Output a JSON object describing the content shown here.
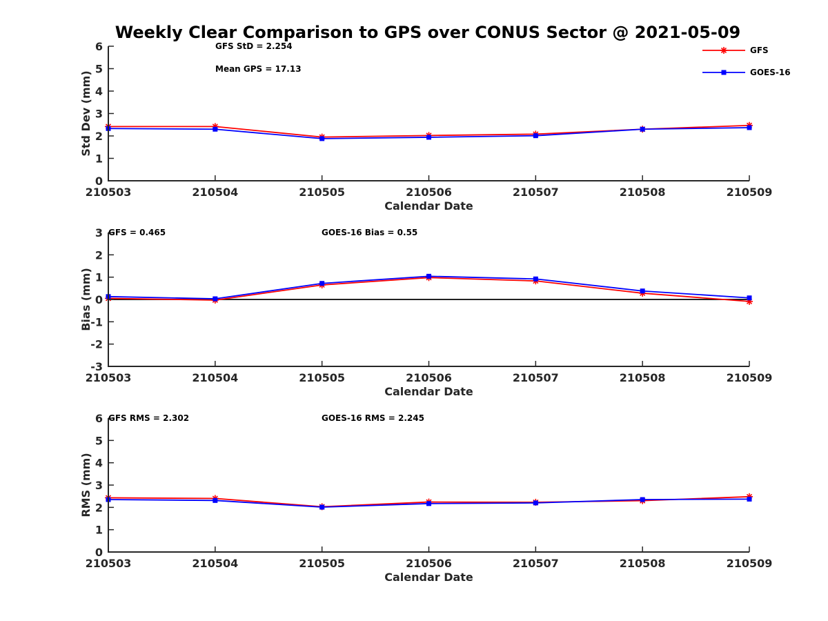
{
  "figure": {
    "title": "Weekly Clear Comparison to GPS over CONUS Sector @ 2021-05-09"
  },
  "legend": {
    "placement": "top-right",
    "entries": [
      {
        "label": "GFS",
        "color": "#ff0000",
        "marker": "asterisk"
      },
      {
        "label": "GOES-16",
        "color": "#0000ff",
        "marker": "square"
      }
    ]
  },
  "chart_data": [
    {
      "type": "line",
      "xlabel": "Calendar Date",
      "ylabel": "Std Dev (mm)",
      "categories": [
        "210503",
        "210504",
        "210505",
        "210506",
        "210507",
        "210508",
        "210509"
      ],
      "ylim": [
        0,
        6
      ],
      "yticks": [
        "0",
        "1",
        "2",
        "3",
        "4",
        "5",
        "6"
      ],
      "zero_line": false,
      "annotations": [
        "GFS StD = 2.254",
        "Mean GPS = 17.13"
      ],
      "series": [
        {
          "name": "GFS",
          "color": "#ff0000",
          "marker": "asterisk",
          "values": [
            2.42,
            2.42,
            1.95,
            2.02,
            2.08,
            2.3,
            2.47
          ]
        },
        {
          "name": "GOES-16",
          "color": "#0000ff",
          "marker": "square",
          "values": [
            2.33,
            2.3,
            1.88,
            1.94,
            2.01,
            2.3,
            2.37
          ]
        }
      ]
    },
    {
      "type": "line",
      "xlabel": "Calendar Date",
      "ylabel": "Bias (mm)",
      "categories": [
        "210503",
        "210504",
        "210505",
        "210506",
        "210507",
        "210508",
        "210509"
      ],
      "ylim": [
        -3,
        3
      ],
      "yticks": [
        "-3",
        "-2",
        "-1",
        "0",
        "1",
        "2",
        "3"
      ],
      "zero_line": true,
      "annotations": [
        "GFS = 0.465",
        "GOES-16 Bias  = 0.55"
      ],
      "series": [
        {
          "name": "GFS",
          "color": "#ff0000",
          "marker": "asterisk",
          "values": [
            0.05,
            -0.03,
            0.65,
            0.98,
            0.83,
            0.28,
            -0.09
          ]
        },
        {
          "name": "GOES-16",
          "color": "#0000ff",
          "marker": "square",
          "values": [
            0.13,
            0.03,
            0.72,
            1.04,
            0.92,
            0.38,
            0.07
          ]
        }
      ]
    },
    {
      "type": "line",
      "xlabel": "Calendar Date",
      "ylabel": "RMS (mm)",
      "categories": [
        "210503",
        "210504",
        "210505",
        "210506",
        "210507",
        "210508",
        "210509"
      ],
      "ylim": [
        0,
        6
      ],
      "yticks": [
        "0",
        "1",
        "2",
        "3",
        "4",
        "5",
        "6"
      ],
      "zero_line": false,
      "annotations": [
        "GFS RMS = 2.302",
        "GOES-16 RMS = 2.245"
      ],
      "series": [
        {
          "name": "GFS",
          "color": "#ff0000",
          "marker": "asterisk",
          "values": [
            2.43,
            2.4,
            2.03,
            2.24,
            2.23,
            2.3,
            2.48
          ]
        },
        {
          "name": "GOES-16",
          "color": "#0000ff",
          "marker": "square",
          "values": [
            2.35,
            2.31,
            2.01,
            2.17,
            2.2,
            2.35,
            2.37
          ]
        }
      ]
    }
  ]
}
